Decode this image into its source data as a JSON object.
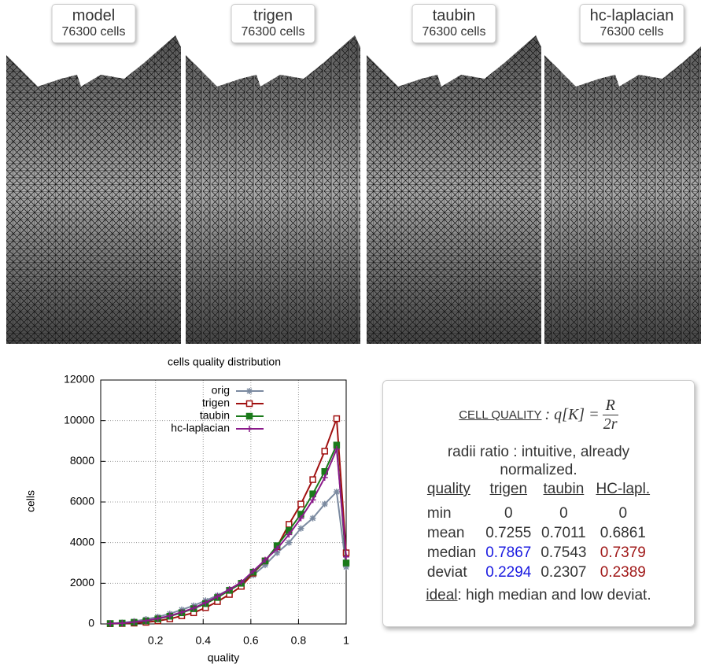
{
  "panels": [
    {
      "title": "model",
      "subtitle": "76300 cells"
    },
    {
      "title": "trigen",
      "subtitle": "76300 cells"
    },
    {
      "title": "taubin",
      "subtitle": "76300 cells"
    },
    {
      "title": "hc-laplacian",
      "subtitle": "76300 cells"
    }
  ],
  "chart_data": {
    "type": "line",
    "title": "cells quality distribution",
    "x_label": "quality",
    "y_label": "cells",
    "x": [
      0.01,
      0.06,
      0.11,
      0.16,
      0.21,
      0.26,
      0.31,
      0.36,
      0.41,
      0.46,
      0.51,
      0.56,
      0.61,
      0.66,
      0.71,
      0.76,
      0.81,
      0.86,
      0.91,
      0.96,
      1
    ],
    "series": [
      {
        "name": "orig",
        "color": "#7b8aa0",
        "marker": "star",
        "values": [
          30,
          60,
          130,
          230,
          350,
          500,
          700,
          900,
          1150,
          1400,
          1700,
          2000,
          2400,
          2900,
          3500,
          4000,
          4700,
          5200,
          5900,
          6500,
          2800
        ]
      },
      {
        "name": "trigen",
        "color": "#a01010",
        "marker": "open-square",
        "values": [
          10,
          20,
          40,
          80,
          150,
          250,
          400,
          550,
          800,
          1100,
          1450,
          1850,
          2500,
          3100,
          3800,
          4900,
          5900,
          7100,
          8500,
          10100,
          3500
        ]
      },
      {
        "name": "taubin",
        "color": "#1a7a1a",
        "marker": "filled-square",
        "values": [
          20,
          40,
          80,
          150,
          250,
          380,
          550,
          750,
          1000,
          1300,
          1650,
          2000,
          2550,
          3100,
          3850,
          4600,
          5400,
          6400,
          7500,
          8800,
          3000
        ]
      },
      {
        "name": "hc-laplacian",
        "color": "#8a1a8a",
        "marker": "plus",
        "values": [
          20,
          40,
          90,
          160,
          270,
          400,
          580,
          780,
          1050,
          1350,
          1700,
          2050,
          2600,
          3150,
          3700,
          4400,
          5200,
          6100,
          7200,
          8600,
          3300
        ]
      }
    ],
    "xlim": [
      -0.03,
      1
    ],
    "ylim": [
      0,
      12000
    ],
    "xticks": [
      0.2,
      0.4,
      0.6,
      0.8,
      1
    ],
    "yticks": [
      0,
      2000,
      4000,
      6000,
      8000,
      10000,
      12000
    ],
    "grid": true,
    "legend": "top-right"
  },
  "table": {
    "heading": "CELL QUALITY",
    "formula_lhs": ": q[K] =",
    "numerator": "R",
    "denominator": "2r",
    "note": "radii ratio : intuitive, already normalized.",
    "header": [
      "quality",
      "trigen",
      "taubin",
      "HC-lapl."
    ],
    "rows": [
      [
        "min",
        "0",
        "0",
        "0"
      ],
      [
        "mean",
        "0.7255",
        "0.7011",
        "0.6861"
      ],
      [
        "median",
        "0.7867",
        "0.7543",
        "0.7379"
      ],
      [
        "deviat",
        "0.2294",
        "0.2307",
        "0.2389"
      ]
    ],
    "footer_key": "ideal",
    "footer_text": ": high median and low deviat."
  }
}
